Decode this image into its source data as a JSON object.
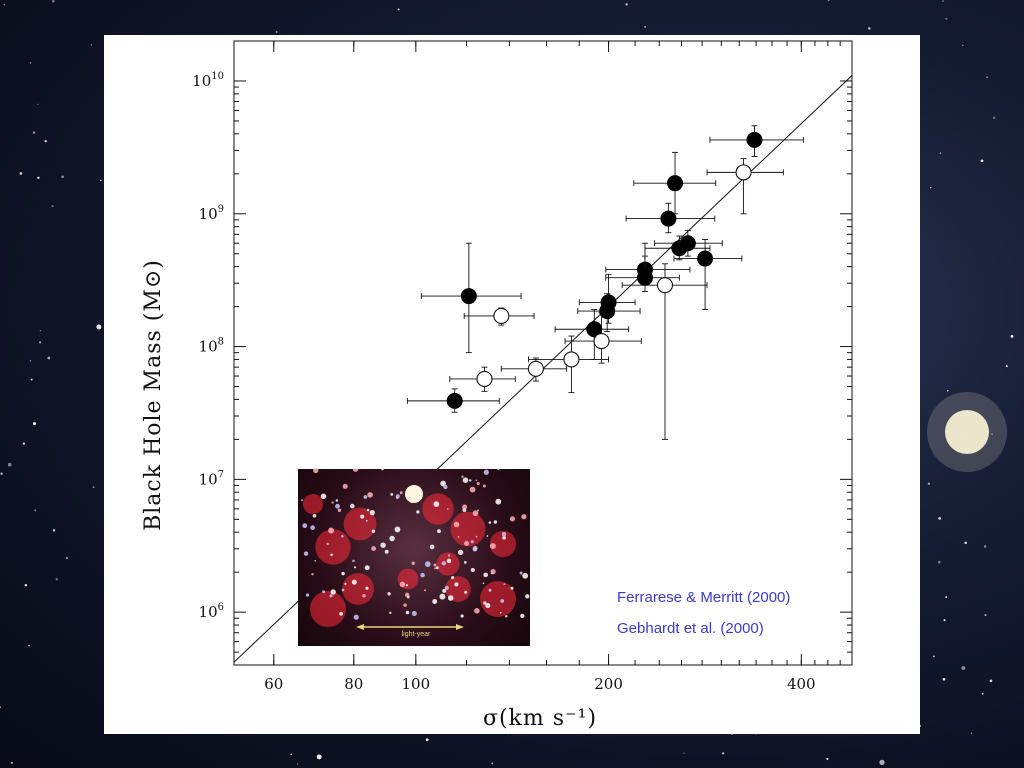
{
  "chart_data": {
    "type": "scatter",
    "title": "",
    "xlabel": "σ(km s⁻¹)",
    "ylabel": "Black Hole Mass (M⊙)",
    "xscale": "log",
    "yscale": "log",
    "xlim": [
      52,
      480
    ],
    "ylim": [
      400000,
      20000000000
    ],
    "xticks": [
      60,
      80,
      100,
      200,
      400
    ],
    "xtick_labels": [
      "60",
      "80",
      "100",
      "200",
      "400"
    ],
    "yticks": [
      1000000,
      10000000,
      100000000,
      1000000000,
      10000000000
    ],
    "ytick_labels": [
      {
        "base": "10",
        "exp": "6"
      },
      {
        "base": "10",
        "exp": "7"
      },
      {
        "base": "10",
        "exp": "8"
      },
      {
        "base": "10",
        "exp": "9"
      },
      {
        "base": "10",
        "exp": "10"
      }
    ],
    "grid": false,
    "fit_line": {
      "x": [
        52,
        480
      ],
      "y": [
        420000,
        11000000000
      ]
    },
    "series": [
      {
        "name": "Ferrarese & Merritt (2000)",
        "marker": "filled-circle",
        "points": [
          {
            "x": 338,
            "y": 3600000000,
            "xerr": [
              50,
              65
            ],
            "yerr": [
              2700000000,
              4600000000
            ]
          },
          {
            "x": 254,
            "y": 1700000000,
            "xerr": [
              35,
              40
            ],
            "yerr": [
              1000000000,
              2900000000
            ]
          },
          {
            "x": 248,
            "y": 920000000,
            "xerr": [
              35,
              45
            ],
            "yerr": [
              720000000,
              1200000000
            ]
          },
          {
            "x": 266,
            "y": 600000000,
            "xerr": [
              30,
              35
            ],
            "yerr": [
              480000000,
              750000000
            ]
          },
          {
            "x": 258,
            "y": 550000000,
            "xerr": [
              30,
              30
            ],
            "yerr": [
              450000000,
              680000000
            ]
          },
          {
            "x": 283,
            "y": 460000000,
            "xerr": [
              30,
              40
            ],
            "yerr": [
              190000000,
              640000000
            ]
          },
          {
            "x": 228,
            "y": 380000000,
            "xerr": [
              30,
              40
            ],
            "yerr": [
              290000000,
              600000000
            ]
          },
          {
            "x": 228,
            "y": 330000000,
            "xerr": [
              30,
              30
            ],
            "yerr": [
              260000000,
              480000000
            ]
          },
          {
            "x": 121,
            "y": 240000000,
            "xerr": [
              19,
              25
            ],
            "yerr": [
              90000000,
              600000000
            ]
          },
          {
            "x": 200,
            "y": 215000000,
            "xerr": [
              20,
              20
            ],
            "yerr": [
              150000000,
              350000000
            ]
          },
          {
            "x": 199,
            "y": 185000000,
            "xerr": [
              20,
              25
            ],
            "yerr": [
              130000000,
              250000000
            ]
          },
          {
            "x": 190,
            "y": 135000000,
            "xerr": [
              25,
              25
            ],
            "yerr": [
              80000000,
              190000000
            ]
          },
          {
            "x": 115,
            "y": 39000000,
            "xerr": [
              18,
              20
            ],
            "yerr": [
              32000000,
              48000000
            ]
          }
        ]
      },
      {
        "name": "Gebhardt et al. (2000)",
        "marker": "open-circle",
        "points": [
          {
            "x": 325,
            "y": 2050000000,
            "xerr": [
              40,
              50
            ],
            "yerr": [
              1000000000,
              2600000000
            ]
          },
          {
            "x": 245,
            "y": 290000000,
            "xerr": [
              35,
              40
            ],
            "yerr": [
              20000000,
              420000000
            ]
          },
          {
            "x": 136,
            "y": 170000000,
            "xerr": [
              17,
              17
            ],
            "yerr": [
              145000000,
              195000000
            ]
          },
          {
            "x": 195,
            "y": 110000000,
            "xerr": [
              24,
              30
            ],
            "yerr": [
              75000000,
              180000000
            ]
          },
          {
            "x": 175,
            "y": 80000000,
            "xerr": [
              25,
              25
            ],
            "yerr": [
              45000000,
              120000000
            ]
          },
          {
            "x": 154,
            "y": 68000000,
            "xerr": [
              18,
              18
            ],
            "yerr": [
              55000000,
              82000000
            ]
          },
          {
            "x": 128,
            "y": 57000000,
            "xerr": [
              15,
              15
            ],
            "yerr": [
              46000000,
              70000000
            ]
          }
        ]
      }
    ],
    "legend": {
      "placement": "bottom-right",
      "entries": [
        "Ferrarese & Merritt (2000)",
        "Gebhardt et al. (2000)"
      ]
    }
  },
  "inset": {
    "description_icon": "galactic-center-photo-icon",
    "scale_bar_label": "light-year"
  },
  "colors": {
    "panel": "#ffffff",
    "ink": "#111111",
    "legend": "#3a3acf",
    "scale_bar": "#e8d37a"
  }
}
